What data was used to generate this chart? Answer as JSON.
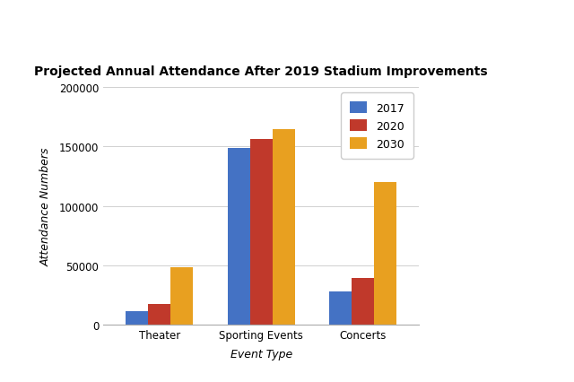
{
  "title": "Projected Annual Attendance After 2019 Stadium Improvements",
  "xlabel": "Event Type",
  "ylabel": "Attendance Numbers",
  "categories": [
    "Theater",
    "Sporting Events",
    "Concerts"
  ],
  "years": [
    "2017",
    "2020",
    "2030"
  ],
  "values": {
    "2017": [
      11000,
      149000,
      28000
    ],
    "2020": [
      17000,
      156000,
      39000
    ],
    "2030": [
      48000,
      165000,
      120000
    ]
  },
  "colors": {
    "2017": "#4472C4",
    "2020": "#C0392B",
    "2030": "#E8A020"
  },
  "ylim": [
    0,
    200000
  ],
  "yticks": [
    0,
    50000,
    100000,
    150000,
    200000
  ],
  "bar_width": 0.22,
  "background_color": "#ffffff",
  "title_fontsize": 10,
  "label_fontsize": 9,
  "tick_fontsize": 8.5,
  "legend_fontsize": 9,
  "grid_color": "#d0d0d0"
}
